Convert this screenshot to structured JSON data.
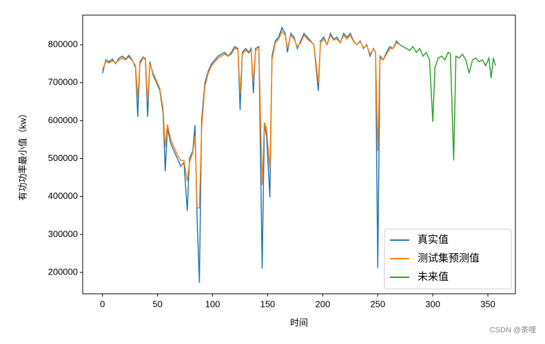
{
  "chart_data": {
    "type": "line",
    "x_label": "时间",
    "y_label": "有功功率最小值（kw）",
    "watermark": "CSDN @茶哩",
    "xlim": [
      -18,
      375
    ],
    "ylim": [
      143800,
      878000
    ],
    "xticks": [
      0,
      50,
      100,
      150,
      200,
      250,
      300,
      350
    ],
    "yticks": [
      200000,
      300000,
      400000,
      500000,
      600000,
      700000,
      800000
    ],
    "legend": "lower right",
    "series": [
      {
        "name": "真实值",
        "color": "#1f77b4",
        "x": [
          0,
          3,
          6,
          9,
          12,
          15,
          18,
          21,
          24,
          27,
          30,
          32,
          34,
          37,
          39,
          41,
          43,
          46,
          49,
          52,
          55,
          57,
          59,
          62,
          65,
          68,
          71,
          74,
          77,
          79,
          82,
          84,
          86,
          88,
          90,
          93,
          96,
          99,
          102,
          105,
          108,
          111,
          114,
          117,
          120,
          123,
          125,
          127,
          130,
          133,
          135,
          137,
          139,
          142,
          145,
          147,
          149,
          152,
          154,
          157,
          160,
          163,
          166,
          168,
          171,
          174,
          177,
          180,
          183,
          186,
          189,
          192,
          196,
          198,
          201,
          204,
          207,
          210,
          213,
          216,
          219,
          222,
          225,
          228,
          231,
          234,
          237,
          240,
          243,
          246,
          248,
          250,
          252,
          255,
          258,
          261,
          264,
          267,
          270
        ],
        "values": [
          725000,
          760000,
          755000,
          762000,
          750000,
          765000,
          770000,
          762000,
          772000,
          760000,
          740000,
          610000,
          755000,
          768000,
          760000,
          610000,
          755000,
          720000,
          700000,
          680000,
          620000,
          467000,
          580000,
          540000,
          520000,
          500000,
          480000,
          490000,
          362000,
          500000,
          520000,
          588000,
          335000,
          173000,
          600000,
          700000,
          730000,
          750000,
          760000,
          770000,
          775000,
          780000,
          770000,
          780000,
          795000,
          790000,
          628000,
          780000,
          790000,
          780000,
          790000,
          672000,
          790000,
          795000,
          210000,
          590000,
          560000,
          398000,
          770000,
          810000,
          820000,
          845000,
          830000,
          780000,
          830000,
          820000,
          790000,
          810000,
          830000,
          820000,
          810000,
          800000,
          678000,
          810000,
          820000,
          800000,
          830000,
          815000,
          820000,
          805000,
          830000,
          820000,
          830000,
          810000,
          800000,
          810000,
          790000,
          800000,
          770000,
          790000,
          780000,
          212000,
          770000,
          760000,
          780000,
          795000,
          790000,
          810000,
          800000
        ]
      },
      {
        "name": "测试集预测值",
        "color": "#ff7f0e",
        "x": [
          0,
          3,
          6,
          9,
          12,
          15,
          18,
          21,
          24,
          27,
          30,
          32,
          34,
          37,
          39,
          41,
          43,
          46,
          49,
          52,
          55,
          57,
          59,
          62,
          65,
          68,
          71,
          74,
          77,
          79,
          82,
          84,
          86,
          88,
          90,
          93,
          96,
          99,
          102,
          105,
          108,
          111,
          114,
          117,
          120,
          123,
          125,
          127,
          130,
          133,
          135,
          137,
          139,
          142,
          145,
          147,
          149,
          152,
          154,
          157,
          160,
          163,
          166,
          168,
          171,
          174,
          177,
          180,
          183,
          186,
          189,
          192,
          196,
          198,
          201,
          204,
          207,
          210,
          213,
          216,
          219,
          222,
          225,
          228,
          231,
          234,
          237,
          240,
          243,
          246,
          248,
          250,
          252,
          255,
          258,
          261,
          264,
          267,
          270
        ],
        "values": [
          735000,
          755000,
          752000,
          758000,
          752000,
          760000,
          765000,
          760000,
          768000,
          758000,
          745000,
          660000,
          750000,
          765000,
          765000,
          650000,
          750000,
          725000,
          705000,
          685000,
          630000,
          530000,
          590000,
          550000,
          530000,
          510000,
          495000,
          495000,
          440000,
          490000,
          515000,
          560000,
          370000,
          370000,
          580000,
          690000,
          725000,
          745000,
          755000,
          765000,
          770000,
          775000,
          770000,
          775000,
          790000,
          788000,
          670000,
          775000,
          785000,
          778000,
          785000,
          700000,
          785000,
          790000,
          430000,
          595000,
          580000,
          470000,
          760000,
          805000,
          815000,
          835000,
          825000,
          790000,
          825000,
          815000,
          795000,
          805000,
          825000,
          815000,
          808000,
          800000,
          700000,
          805000,
          815000,
          800000,
          825000,
          812000,
          815000,
          805000,
          825000,
          815000,
          825000,
          808000,
          800000,
          808000,
          792000,
          798000,
          775000,
          788000,
          780000,
          520000,
          765000,
          760000,
          775000,
          790000,
          790000,
          805000,
          800000
        ]
      },
      {
        "name": "未来值",
        "color": "#2ca02c",
        "x": [
          270,
          273,
          276,
          279,
          282,
          285,
          288,
          291,
          294,
          297,
          300,
          302,
          305,
          308,
          311,
          314,
          316,
          319,
          321,
          324,
          327,
          330,
          333,
          336,
          339,
          342,
          345,
          348,
          351,
          353,
          355,
          357
        ],
        "values": [
          800000,
          795000,
          790000,
          785000,
          795000,
          780000,
          790000,
          770000,
          780000,
          760000,
          597000,
          740000,
          765000,
          770000,
          760000,
          780000,
          775000,
          495000,
          770000,
          765000,
          775000,
          760000,
          725000,
          760000,
          765000,
          755000,
          760000,
          745000,
          765000,
          712000,
          765000,
          745000
        ]
      }
    ]
  }
}
